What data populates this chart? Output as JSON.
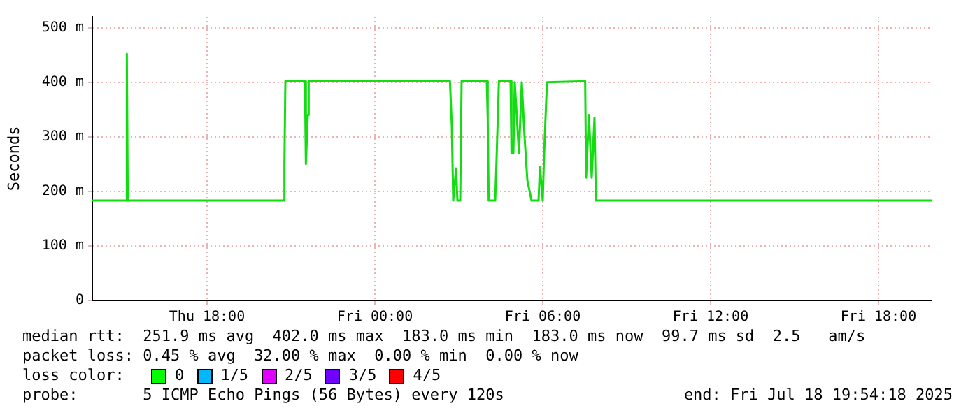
{
  "chart_data": {
    "type": "line",
    "ylabel": "Seconds",
    "x": [
      "2025-07-17T13:54",
      "2025-07-17T15:06",
      "2025-07-17T15:08",
      "2025-07-17T15:10",
      "2025-07-17T20:45",
      "2025-07-17T20:46",
      "2025-07-17T20:48",
      "2025-07-17T21:30",
      "2025-07-17T21:32",
      "2025-07-17T21:36",
      "2025-07-17T21:38",
      "2025-07-18T02:41",
      "2025-07-18T02:45",
      "2025-07-18T02:48",
      "2025-07-18T02:54",
      "2025-07-18T02:57",
      "2025-07-18T03:03",
      "2025-07-18T03:06",
      "2025-07-18T04:00",
      "2025-07-18T04:02",
      "2025-07-18T04:04",
      "2025-07-18T04:18",
      "2025-07-18T04:21",
      "2025-07-18T04:26",
      "2025-07-18T04:51",
      "2025-07-18T04:53",
      "2025-07-18T04:57",
      "2025-07-18T05:00",
      "2025-07-18T05:09",
      "2025-07-18T05:15",
      "2025-07-18T05:21",
      "2025-07-18T05:27",
      "2025-07-18T05:36",
      "2025-07-18T05:51",
      "2025-07-18T05:54",
      "2025-07-18T06:00",
      "2025-07-18T06:03",
      "2025-07-18T06:09",
      "2025-07-18T07:31",
      "2025-07-18T07:33",
      "2025-07-18T07:39",
      "2025-07-18T07:45",
      "2025-07-18T07:51",
      "2025-07-18T07:54",
      "2025-07-18T19:54"
    ],
    "series": [
      {
        "color": "#11dd11",
        "values": [
          183,
          183,
          452,
          183,
          183,
          250,
          402,
          402,
          250,
          340,
          402,
          402,
          320,
          183,
          242,
          183,
          183,
          402,
          402,
          334,
          183,
          183,
          260,
          402,
          402,
          270,
          270,
          400,
          270,
          400,
          300,
          220,
          183,
          183,
          245,
          183,
          270,
          400,
          402,
          225,
          340,
          225,
          335,
          183,
          183
        ]
      }
    ],
    "xlim": [
      "2025-07-17T13:54",
      "2025-07-18T19:54"
    ],
    "xticks": [
      {
        "value": "2025-07-17T18:00",
        "label": "Thu 18:00"
      },
      {
        "value": "2025-07-18T00:00",
        "label": "Fri 00:00"
      },
      {
        "value": "2025-07-18T06:00",
        "label": "Fri 06:00"
      },
      {
        "value": "2025-07-18T12:00",
        "label": "Fri 12:00"
      },
      {
        "value": "2025-07-18T18:00",
        "label": "Fri 18:00"
      }
    ],
    "ylim": [
      0,
      520
    ],
    "yticks": [
      0,
      {
        "value": 100,
        "label": "100 m"
      },
      {
        "value": 200,
        "label": "200 m"
      },
      {
        "value": 300,
        "label": "300 m"
      },
      {
        "value": 400,
        "label": "400 m"
      },
      {
        "value": 500,
        "label": "500 m"
      }
    ],
    "grid": true,
    "legend": false,
    "annotations": [
      "median rtt:  251.9 ms avg  402.0 ms max  183.0 ms min  183.0 ms now  99.7 ms sd  2.5   am/s",
      "packet loss: 0.45 % avg  32.00 % max  0.00 % min  0.00 % now",
      "loss color:",
      "0",
      "1/5",
      "2/5",
      "3/5",
      "4/5",
      "probe:       5 ICMP Echo Pings (56 Bytes) every 120s",
      "end: Fri Jul 18 19:54:18 2025"
    ]
  }
}
